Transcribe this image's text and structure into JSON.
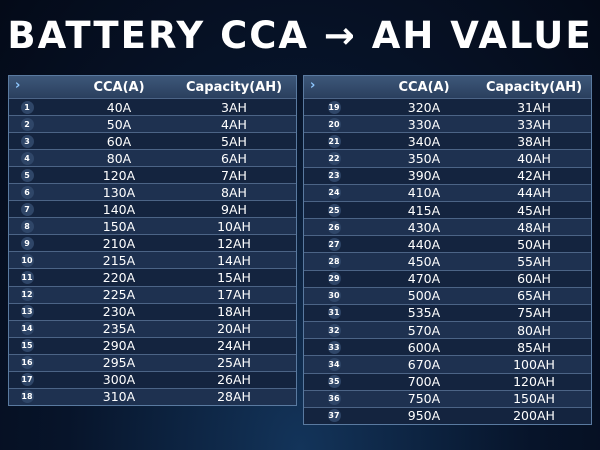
{
  "title": "BATTERY CCA → AH VALUE",
  "tables": [
    {
      "header": [
        "CCA(A)",
        "Capacity(AH)"
      ],
      "rows": [
        [
          "1",
          "40A",
          "3AH"
        ],
        [
          "2",
          "50A",
          "4AH"
        ],
        [
          "3",
          "60A",
          "5AH"
        ],
        [
          "4",
          "80A",
          "6AH"
        ],
        [
          "5",
          "120A",
          "7AH"
        ],
        [
          "6",
          "130A",
          "8AH"
        ],
        [
          "7",
          "140A",
          "9AH"
        ],
        [
          "8",
          "150A",
          "10AH"
        ],
        [
          "9",
          "210A",
          "12AH"
        ],
        [
          "10",
          "215A",
          "14AH"
        ],
        [
          "11",
          "220A",
          "15AH"
        ],
        [
          "12",
          "225A",
          "17AH"
        ],
        [
          "13",
          "230A",
          "18AH"
        ],
        [
          "14",
          "235A",
          "20AH"
        ],
        [
          "15",
          "290A",
          "24AH"
        ],
        [
          "16",
          "295A",
          "25AH"
        ],
        [
          "17",
          "300A",
          "26AH"
        ],
        [
          "18",
          "310A",
          "28AH"
        ]
      ]
    },
    {
      "header": [
        "CCA(A)",
        "Capacity(AH)"
      ],
      "rows": [
        [
          "19",
          "320A",
          "31AH"
        ],
        [
          "20",
          "330A",
          "33AH"
        ],
        [
          "21",
          "340A",
          "38AH"
        ],
        [
          "22",
          "350A",
          "40AH"
        ],
        [
          "23",
          "390A",
          "42AH"
        ],
        [
          "24",
          "410A",
          "44AH"
        ],
        [
          "25",
          "415A",
          "45AH"
        ],
        [
          "26",
          "430A",
          "48AH"
        ],
        [
          "27",
          "440A",
          "50AH"
        ],
        [
          "28",
          "450A",
          "55AH"
        ],
        [
          "29",
          "470A",
          "60AH"
        ],
        [
          "30",
          "500A",
          "65AH"
        ],
        [
          "31",
          "535A",
          "75AH"
        ],
        [
          "32",
          "570A",
          "80AH"
        ],
        [
          "33",
          "600A",
          "85AH"
        ],
        [
          "34",
          "670A",
          "100AH"
        ],
        [
          "35",
          "700A",
          "120AH"
        ],
        [
          "36",
          "750A",
          "150AH"
        ],
        [
          "37",
          "950A",
          "200AH"
        ]
      ]
    }
  ]
}
